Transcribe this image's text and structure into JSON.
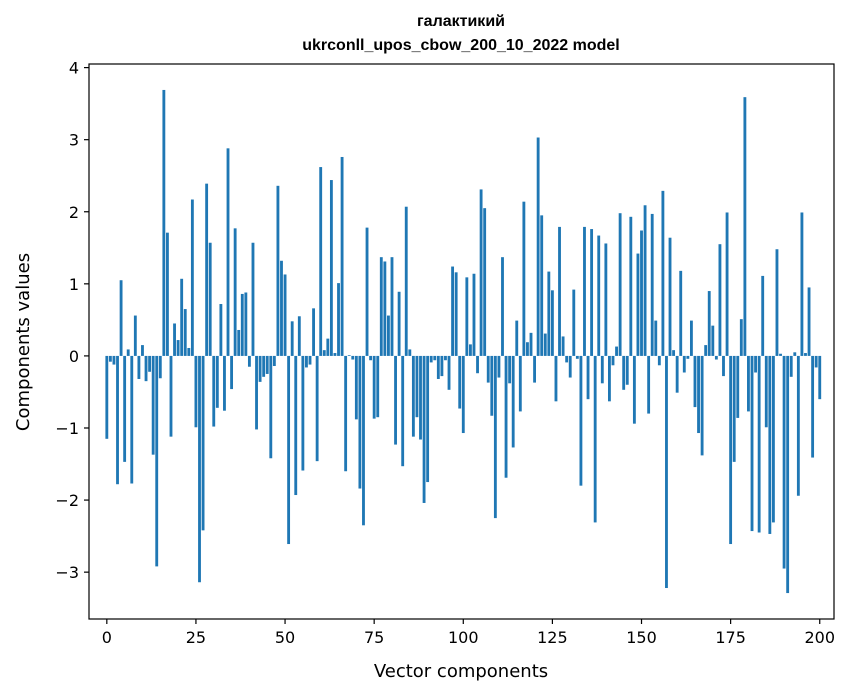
{
  "chart_data": {
    "type": "bar",
    "title": "галактикий",
    "subtitle": "ukrconll_upos_cbow_200_10_2022 model",
    "xlabel": "Vector components",
    "ylabel": "Components values",
    "xlim": [
      -5,
      204
    ],
    "ylim": [
      -3.65,
      4.05
    ],
    "xticks": [
      0,
      25,
      50,
      75,
      100,
      125,
      150,
      175,
      200
    ],
    "xtick_labels": [
      "0",
      "25",
      "50",
      "75",
      "100",
      "125",
      "150",
      "175",
      "200"
    ],
    "yticks": [
      -3,
      -2,
      -1,
      0,
      1,
      2,
      3,
      4
    ],
    "ytick_labels": [
      "−3",
      "−2",
      "−1",
      "0",
      "1",
      "2",
      "3",
      "4"
    ],
    "bar_color": "#1f77b4",
    "values": [
      -1.15,
      -0.08,
      -0.12,
      -1.78,
      1.05,
      -1.47,
      0.09,
      -1.77,
      0.56,
      -0.32,
      0.15,
      -0.35,
      -0.22,
      -1.37,
      -2.92,
      -0.31,
      3.69,
      1.71,
      -1.12,
      0.45,
      0.22,
      1.07,
      0.65,
      0.11,
      2.17,
      -0.99,
      -3.14,
      -2.42,
      2.39,
      1.57,
      -0.98,
      -0.72,
      0.72,
      -0.76,
      2.88,
      -0.46,
      1.77,
      0.36,
      0.86,
      0.88,
      -0.15,
      1.57,
      -1.02,
      -0.36,
      -0.29,
      -0.25,
      -1.42,
      -0.14,
      2.36,
      1.32,
      1.13,
      -2.61,
      0.48,
      -1.93,
      0.55,
      -1.59,
      -0.16,
      -0.12,
      0.66,
      -1.46,
      2.62,
      0.08,
      0.24,
      2.44,
      0.04,
      1.01,
      2.76,
      -1.6,
      0.01,
      -0.05,
      -0.88,
      -1.84,
      -2.35,
      1.78,
      -0.06,
      -0.87,
      -0.85,
      1.37,
      1.31,
      0.56,
      1.37,
      -1.23,
      0.89,
      -1.53,
      2.07,
      0.09,
      -1.12,
      -0.85,
      -1.16,
      -2.04,
      -1.75,
      -0.09,
      -0.06,
      -0.32,
      -0.28,
      -0.06,
      -0.47,
      1.24,
      1.16,
      -0.73,
      -1.07,
      1.09,
      0.16,
      1.14,
      -0.24,
      2.31,
      2.05,
      -0.37,
      -0.83,
      -2.25,
      -0.3,
      1.37,
      -1.69,
      -0.38,
      -1.27,
      0.49,
      -0.77,
      2.14,
      0.19,
      0.32,
      -0.37,
      3.03,
      1.95,
      0.31,
      1.17,
      0.91,
      -0.63,
      1.79,
      0.27,
      -0.09,
      -0.3,
      0.92,
      -0.04,
      -1.8,
      1.79,
      -0.6,
      1.76,
      -2.31,
      1.67,
      -0.38,
      1.56,
      -0.63,
      -0.13,
      0.13,
      1.98,
      -0.47,
      -0.4,
      1.93,
      -0.94,
      1.42,
      1.74,
      2.09,
      -0.8,
      1.97,
      0.49,
      -0.13,
      2.29,
      -3.22,
      1.64,
      0.08,
      -0.51,
      1.18,
      -0.23,
      -0.04,
      0.49,
      -0.71,
      -1.07,
      -1.38,
      0.15,
      0.9,
      0.42,
      -0.05,
      1.55,
      -0.28,
      1.99,
      -2.61,
      -1.47,
      -0.86,
      0.51,
      3.59,
      -0.77,
      -2.43,
      -0.23,
      -2.45,
      1.11,
      -0.99,
      -2.47,
      -2.31,
      1.48,
      0.03,
      -2.95,
      -3.29,
      -0.29,
      0.05,
      -1.94,
      1.99,
      0.04,
      0.95,
      -1.41,
      -0.16,
      -0.6
    ]
  }
}
